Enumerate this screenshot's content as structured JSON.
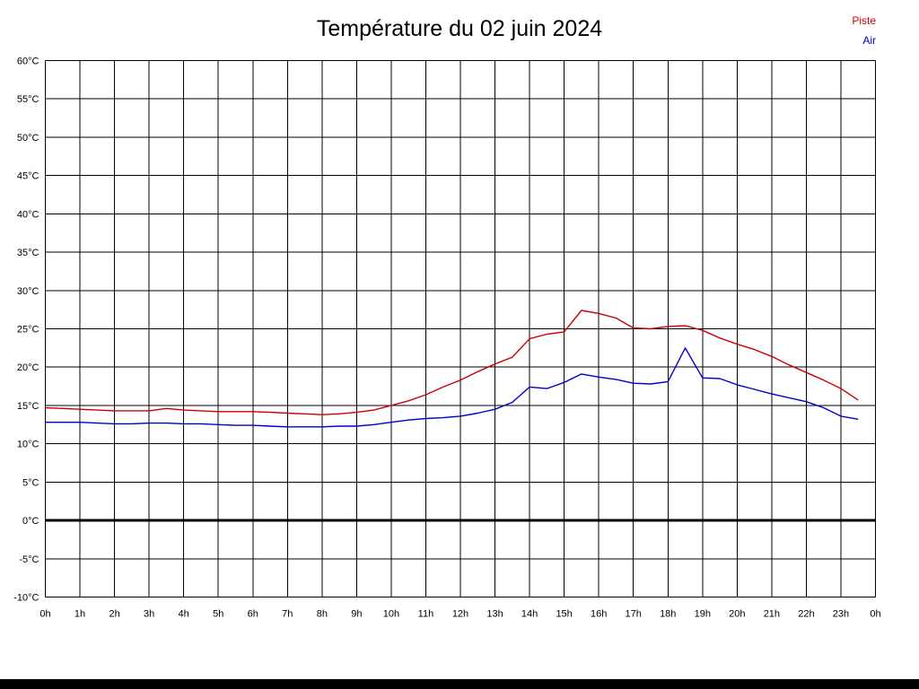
{
  "title": "Température du 02 juin 2024",
  "legend": {
    "piste_label": "Piste",
    "air_label": "Air",
    "piste_color": "#cc0000",
    "air_color": "#0000cc"
  },
  "chart_data": {
    "type": "line",
    "title": "Température du 02 juin 2024",
    "xlabel": "",
    "ylabel": "",
    "ylim": [
      -10,
      60
    ],
    "ytick_step": 5,
    "y_tick_labels": [
      "60°C",
      "55°C",
      "50°C",
      "45°C",
      "40°C",
      "35°C",
      "30°C",
      "25°C",
      "20°C",
      "15°C",
      "10°C",
      "5°C",
      "0°C",
      "-5°C",
      "-10°C"
    ],
    "x_labels": [
      "0h",
      "1h",
      "2h",
      "3h",
      "4h",
      "5h",
      "6h",
      "7h",
      "8h",
      "9h",
      "10h",
      "11h",
      "12h",
      "13h",
      "14h",
      "15h",
      "16h",
      "17h",
      "18h",
      "19h",
      "20h",
      "21h",
      "22h",
      "23h",
      "0h"
    ],
    "x_range_hours": [
      0,
      24
    ],
    "grid": true,
    "zero_line": true,
    "legend_position": "top-right",
    "series": [
      {
        "name": "Piste",
        "color": "#cc0000",
        "points": [
          [
            0,
            14.7
          ],
          [
            0.5,
            14.6
          ],
          [
            1,
            14.5
          ],
          [
            1.5,
            14.4
          ],
          [
            2,
            14.3
          ],
          [
            2.5,
            14.3
          ],
          [
            3,
            14.3
          ],
          [
            3.5,
            14.6
          ],
          [
            4,
            14.4
          ],
          [
            4.5,
            14.3
          ],
          [
            5,
            14.2
          ],
          [
            5.5,
            14.2
          ],
          [
            6,
            14.2
          ],
          [
            6.5,
            14.1
          ],
          [
            7,
            14.0
          ],
          [
            7.5,
            13.9
          ],
          [
            8,
            13.8
          ],
          [
            8.5,
            13.9
          ],
          [
            9,
            14.1
          ],
          [
            9.5,
            14.4
          ],
          [
            10,
            15.0
          ],
          [
            10.5,
            15.6
          ],
          [
            11,
            16.4
          ],
          [
            11.5,
            17.4
          ],
          [
            12,
            18.3
          ],
          [
            12.5,
            19.4
          ],
          [
            13,
            20.4
          ],
          [
            13.5,
            21.3
          ],
          [
            14,
            23.7
          ],
          [
            14.5,
            24.3
          ],
          [
            15,
            24.6
          ],
          [
            15.5,
            27.4
          ],
          [
            16,
            27.0
          ],
          [
            16.5,
            26.4
          ],
          [
            17,
            25.1
          ],
          [
            17.5,
            25.0
          ],
          [
            18,
            25.3
          ],
          [
            18.5,
            25.4
          ],
          [
            19,
            24.8
          ],
          [
            19.5,
            23.8
          ],
          [
            20,
            23.0
          ],
          [
            20.5,
            22.3
          ],
          [
            21,
            21.4
          ],
          [
            21.5,
            20.3
          ],
          [
            22,
            19.3
          ],
          [
            22.5,
            18.3
          ],
          [
            23,
            17.2
          ],
          [
            23.5,
            15.7
          ]
        ]
      },
      {
        "name": "Air",
        "color": "#0000cc",
        "points": [
          [
            0,
            12.8
          ],
          [
            0.5,
            12.8
          ],
          [
            1,
            12.8
          ],
          [
            1.5,
            12.7
          ],
          [
            2,
            12.6
          ],
          [
            2.5,
            12.6
          ],
          [
            3,
            12.7
          ],
          [
            3.5,
            12.7
          ],
          [
            4,
            12.6
          ],
          [
            4.5,
            12.6
          ],
          [
            5,
            12.5
          ],
          [
            5.5,
            12.4
          ],
          [
            6,
            12.4
          ],
          [
            6.5,
            12.3
          ],
          [
            7,
            12.2
          ],
          [
            7.5,
            12.2
          ],
          [
            8,
            12.2
          ],
          [
            8.5,
            12.3
          ],
          [
            9,
            12.3
          ],
          [
            9.5,
            12.5
          ],
          [
            10,
            12.8
          ],
          [
            10.5,
            13.1
          ],
          [
            11,
            13.3
          ],
          [
            11.5,
            13.4
          ],
          [
            12,
            13.6
          ],
          [
            12.5,
            14.0
          ],
          [
            13,
            14.5
          ],
          [
            13.5,
            15.4
          ],
          [
            14,
            17.4
          ],
          [
            14.5,
            17.2
          ],
          [
            15,
            18.0
          ],
          [
            15.5,
            19.1
          ],
          [
            16,
            18.7
          ],
          [
            16.5,
            18.4
          ],
          [
            17,
            17.9
          ],
          [
            17.5,
            17.8
          ],
          [
            18,
            18.1
          ],
          [
            18.5,
            22.5
          ],
          [
            19,
            18.6
          ],
          [
            19.5,
            18.5
          ],
          [
            20,
            17.7
          ],
          [
            20.5,
            17.1
          ],
          [
            21,
            16.5
          ],
          [
            21.5,
            16.0
          ],
          [
            22,
            15.5
          ],
          [
            22.5,
            14.7
          ],
          [
            23,
            13.6
          ],
          [
            23.5,
            13.2
          ]
        ]
      }
    ]
  }
}
